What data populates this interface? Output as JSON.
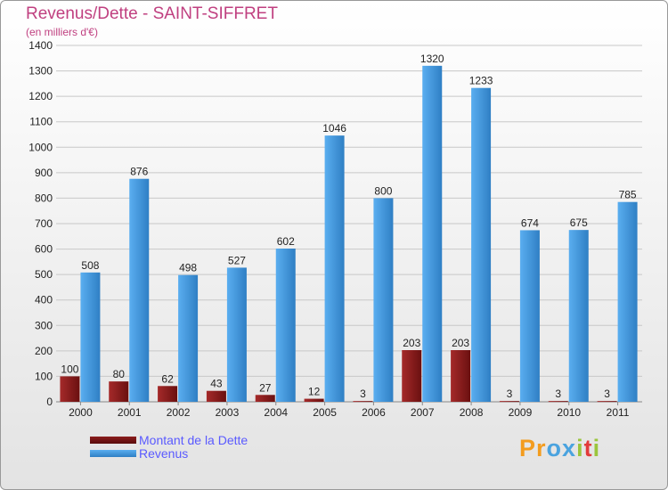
{
  "colors": {
    "title": "#c04080",
    "debt": "#8b1c1c",
    "debt_light": "#6a1010",
    "revenue": "#4a9fe0",
    "grid": "#c8c8c8",
    "axis_text": "#222222",
    "legend_text": "#5a5aff"
  },
  "chart_data": {
    "type": "bar",
    "title": "Revenus/Dette - SAINT-SIFFRET",
    "subtitle": "(en milliers d'€)",
    "categories": [
      "2000",
      "2001",
      "2002",
      "2003",
      "2004",
      "2005",
      "2006",
      "2007",
      "2008",
      "2009",
      "2010",
      "2011"
    ],
    "series": [
      {
        "name": "Montant de la Dette",
        "values": [
          100,
          80,
          62,
          43,
          27,
          12,
          3,
          203,
          203,
          3,
          3,
          3
        ]
      },
      {
        "name": "Revenus",
        "values": [
          508,
          876,
          498,
          527,
          602,
          1046,
          800,
          1320,
          1233,
          674,
          675,
          785
        ]
      }
    ],
    "ylim": [
      0,
      1400
    ],
    "yticks": [
      "0",
      "100",
      "200",
      "300",
      "400",
      "500",
      "600",
      "700",
      "800",
      "900",
      "1000",
      "1100",
      "1200",
      "1300",
      "1400"
    ],
    "grid": true,
    "legend": "bottom-left"
  },
  "logo": {
    "text": "Proxiti",
    "letters": [
      {
        "ch": "P",
        "color": "#f39c1f"
      },
      {
        "ch": "r",
        "color": "#f39c1f"
      },
      {
        "ch": "o",
        "color": "#4aa3df"
      },
      {
        "ch": "x",
        "color": "#4aa3df"
      },
      {
        "ch": "i",
        "color": "#9bc53d"
      },
      {
        "ch": "t",
        "color": "#e23b3b"
      },
      {
        "ch": "i",
        "color": "#9bc53d"
      }
    ]
  }
}
